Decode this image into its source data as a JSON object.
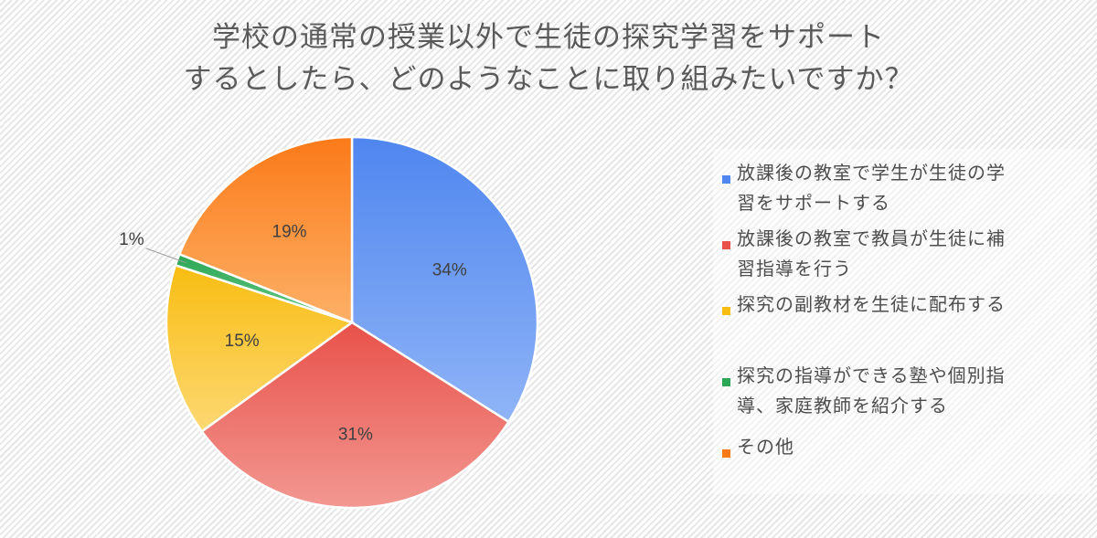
{
  "chart_data": {
    "type": "pie",
    "title_lines": [
      "学校の通常の授業以外で生徒の探究学習をサポート",
      "するとしたら、どのようなことに取り組みたいですか？"
    ],
    "slices": [
      {
        "name": "放課後の教室で学生が生徒の学習をサポートする",
        "legend_lines": [
          "放課後の教室で学生が生徒の学",
          "習をサポートする"
        ],
        "value": 34,
        "label": "34%",
        "color": "#4f86ef",
        "color_light": "#8fb4f7"
      },
      {
        "name": "放課後の教室で教員が生徒に補習指導を行う",
        "legend_lines": [
          "放課後の教室で教員が生徒に補",
          "習指導を行う"
        ],
        "value": 31,
        "label": "31%",
        "color": "#e8514a",
        "color_light": "#f29891"
      },
      {
        "name": "探究の副教材を生徒に配布する",
        "legend_lines": [
          "探究の副教材を生徒に配布する"
        ],
        "value": 15,
        "label": "15%",
        "color": "#f8bd12",
        "color_light": "#fdd873"
      },
      {
        "name": "探究の指導ができる塾や個別指導、家庭教師を紹介する",
        "legend_lines": [
          "探究の指導ができる塾や個別指",
          "導、家庭教師を紹介する"
        ],
        "value": 1,
        "label": "1%",
        "color": "#2aa654",
        "color_light": "#6bc98a"
      },
      {
        "name": "その他",
        "legend_lines": [
          "その他"
        ],
        "value": 19,
        "label": "19%",
        "color": "#fb7a18",
        "color_light": "#fdb067"
      }
    ],
    "legend_position": "right",
    "grid": false
  }
}
